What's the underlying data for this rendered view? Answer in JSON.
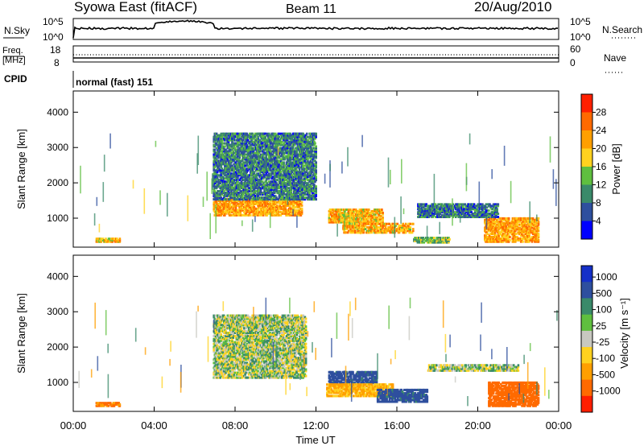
{
  "header": {
    "station": "Syowa East (fitACF)",
    "beam": "Beam 11",
    "date": "20/Aug/2010"
  },
  "panels": {
    "nsky": {
      "label": "N.Sky",
      "right_label": "N.Search",
      "yticks_left": [
        "10^5",
        "10^0"
      ],
      "yticks_right": [
        "10^5",
        "10^0"
      ]
    },
    "freq": {
      "label_line1": "Freq.",
      "label_line2": "[MHz]",
      "right_label": "Nave",
      "yticks_left": [
        "18",
        "8"
      ],
      "yticks_right": [
        "60",
        "0"
      ]
    },
    "cpid": {
      "label": "CPID",
      "value": "normal (fast) 151"
    }
  },
  "colors": {
    "power": [
      "#0000ff",
      "#2e4f9e",
      "#3a8a6a",
      "#5fbf3f",
      "#ffd21f",
      "#ff9f00",
      "#ff6a00",
      "#ff2000"
    ],
    "velocity": [
      "#1530c8",
      "#2e4f9e",
      "#3a8a6a",
      "#5fbf3f",
      "#c8c8c0",
      "#ffd21f",
      "#ff9f00",
      "#ff6a00",
      "#ff1e00"
    ]
  },
  "chart_data": [
    {
      "type": "heatmap",
      "name": "power",
      "ylabel": "Slant Range [km]",
      "ylim": [
        180,
        4600
      ],
      "yticks": [
        1000,
        2000,
        3000,
        4000
      ],
      "xlim": [
        0,
        24
      ],
      "colorbar": {
        "label": "Power [dB]",
        "range": [
          0,
          32
        ],
        "ticks": [
          "4",
          "8",
          "12",
          "16",
          "20",
          "24",
          "28"
        ]
      },
      "features": [
        {
          "t0": 1.1,
          "t1": 2.3,
          "r0": 300,
          "r1": 420,
          "level": 20
        },
        {
          "t0": 6.9,
          "t1": 11.3,
          "r0": 1050,
          "r1": 1550,
          "level": 22
        },
        {
          "t0": 6.9,
          "t1": 12.0,
          "r0": 1500,
          "r1": 3400,
          "level": 9
        },
        {
          "t0": 12.6,
          "t1": 15.3,
          "r0": 850,
          "r1": 1250,
          "level": 20
        },
        {
          "t0": 13.3,
          "t1": 16.8,
          "r0": 560,
          "r1": 850,
          "level": 21
        },
        {
          "t0": 16.8,
          "t1": 18.6,
          "r0": 280,
          "r1": 450,
          "level": 14
        },
        {
          "t0": 20.3,
          "t1": 23.0,
          "r0": 300,
          "r1": 1000,
          "level": 22
        },
        {
          "t0": 17.0,
          "t1": 21.0,
          "r0": 1000,
          "r1": 1400,
          "level": 8
        }
      ]
    },
    {
      "type": "heatmap",
      "name": "velocity",
      "ylabel": "Slant Range [km]",
      "xlabel": "Time UT",
      "ylim": [
        180,
        4600
      ],
      "yticks": [
        1000,
        2000,
        3000,
        4000
      ],
      "xlim": [
        0,
        24
      ],
      "xticks": [
        "00:00",
        "04:00",
        "08:00",
        "12:00",
        "16:00",
        "20:00",
        "00:00"
      ],
      "colorbar": {
        "label": "Velocity [m s⁻¹]",
        "ticks": [
          "1000",
          "500",
          "100",
          "25",
          "-25",
          "-100",
          "-500",
          "-1000"
        ]
      },
      "features": [
        {
          "t0": 1.1,
          "t1": 2.3,
          "r0": 300,
          "r1": 420,
          "level": -200
        },
        {
          "t0": 6.9,
          "t1": 11.5,
          "r0": 1100,
          "r1": 1700,
          "level": 0
        },
        {
          "t0": 6.9,
          "t1": 11.5,
          "r0": 1700,
          "r1": 2900,
          "level": 0
        },
        {
          "t0": 12.6,
          "t1": 15.0,
          "r0": 950,
          "r1": 1300,
          "level": 150
        },
        {
          "t0": 12.5,
          "t1": 15.8,
          "r0": 580,
          "r1": 950,
          "level": -120
        },
        {
          "t0": 15.0,
          "t1": 17.5,
          "r0": 420,
          "r1": 800,
          "level": 150
        },
        {
          "t0": 20.5,
          "t1": 23.0,
          "r0": 300,
          "r1": 1000,
          "level": -300
        },
        {
          "t0": 17.5,
          "t1": 22.0,
          "r0": 1300,
          "r1": 1500,
          "level": 0
        }
      ]
    }
  ]
}
